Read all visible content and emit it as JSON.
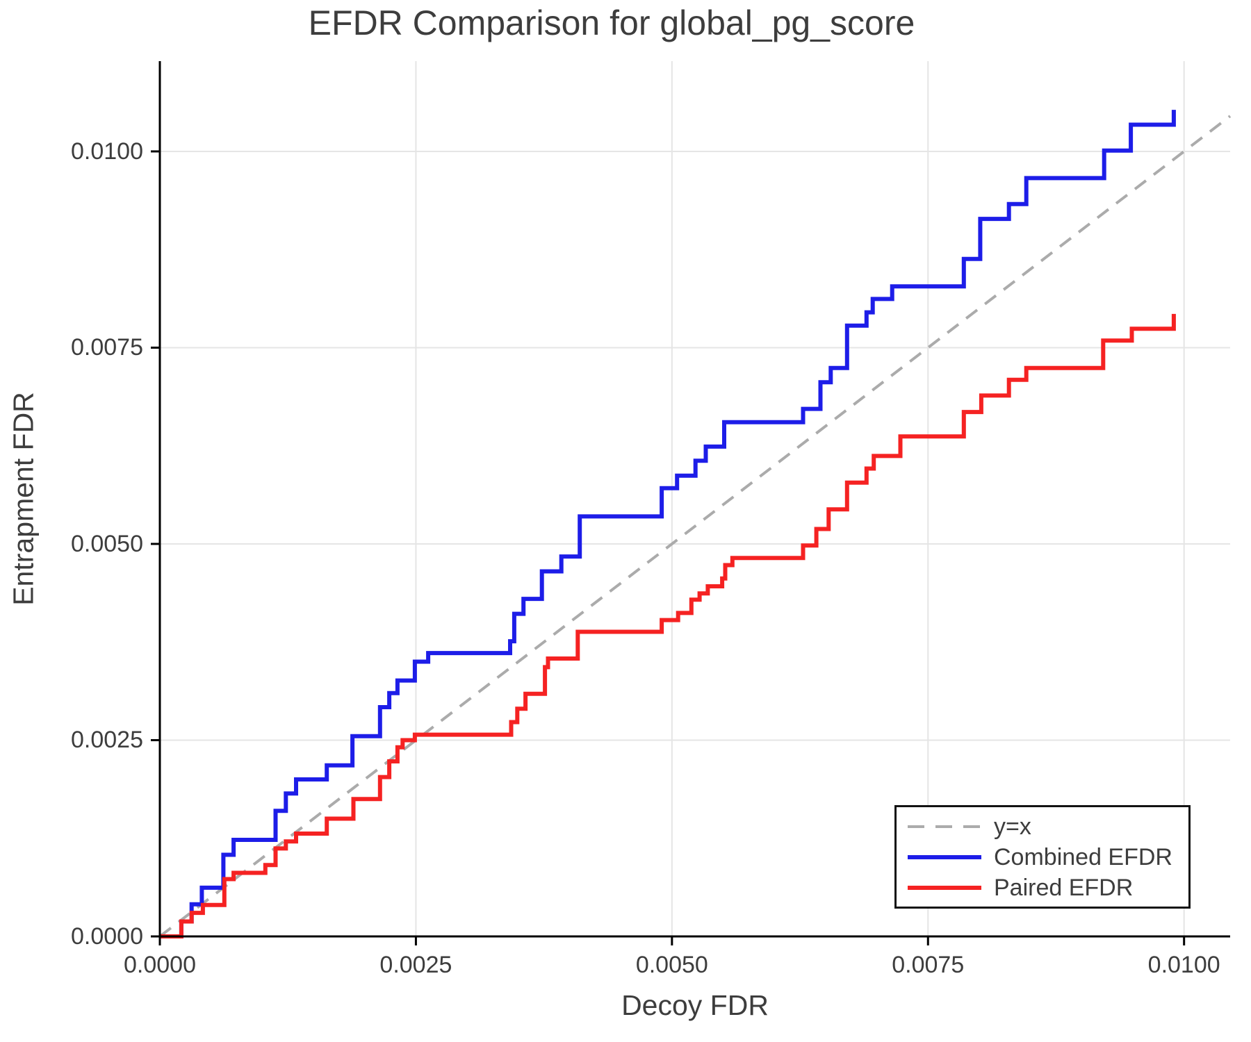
{
  "chart_data": {
    "type": "line",
    "subtype": "step",
    "title": "EFDR Comparison for global_pg_score",
    "xlabel": "Decoy FDR",
    "ylabel": "Entrapment FDR",
    "xlim": [
      0,
      0.01045
    ],
    "ylim": [
      0,
      0.01115
    ],
    "grid": true,
    "x_ticks": [
      0.0,
      0.0025,
      0.005,
      0.0075,
      0.01
    ],
    "x_tick_labels": [
      "0.0000",
      "0.0025",
      "0.0050",
      "0.0075",
      "0.0100"
    ],
    "y_ticks": [
      0.0,
      0.0025,
      0.005,
      0.0075,
      0.01
    ],
    "y_tick_labels": [
      "0.0000",
      "0.0025",
      "0.0050",
      "0.0075",
      "0.0100"
    ],
    "colors": {
      "grid": "#e5e5e5",
      "axis": "#000000",
      "text": "#3d3d3d",
      "background": "#ffffff"
    },
    "diagonal": {
      "label": "y=x",
      "color": "#ababab",
      "dash": [
        20,
        14
      ],
      "width": 4,
      "from": [
        0,
        0
      ],
      "to": [
        0.01045,
        0.01045
      ]
    },
    "series": [
      {
        "name": "Combined EFDR",
        "color": "#1d1de8",
        "width": 6,
        "start": [
          0,
          0
        ],
        "steps": [
          [
            0.00021,
            0.00019
          ],
          [
            0.00031,
            0.00041
          ],
          [
            0.00041,
            0.00062
          ],
          [
            0.00062,
            0.00104
          ],
          [
            0.00072,
            0.00123
          ],
          [
            0.00113,
            0.0016
          ],
          [
            0.00123,
            0.00182
          ],
          [
            0.00133,
            0.002
          ],
          [
            0.00163,
            0.00218
          ],
          [
            0.00188,
            0.00255
          ],
          [
            0.00215,
            0.00292
          ],
          [
            0.00224,
            0.0031
          ],
          [
            0.00232,
            0.00326
          ],
          [
            0.00249,
            0.0035
          ],
          [
            0.00262,
            0.00361
          ],
          [
            0.00342,
            0.00376
          ],
          [
            0.00346,
            0.00411
          ],
          [
            0.00355,
            0.0043
          ],
          [
            0.00373,
            0.00465
          ],
          [
            0.00392,
            0.00484
          ],
          [
            0.0041,
            0.00535
          ],
          [
            0.0049,
            0.00571
          ],
          [
            0.00505,
            0.00587
          ],
          [
            0.00523,
            0.00606
          ],
          [
            0.00533,
            0.00624
          ],
          [
            0.00551,
            0.00655
          ],
          [
            0.00628,
            0.00672
          ],
          [
            0.00645,
            0.00706
          ],
          [
            0.00655,
            0.00724
          ],
          [
            0.00671,
            0.00778
          ],
          [
            0.0069,
            0.00795
          ],
          [
            0.00696,
            0.00812
          ],
          [
            0.00715,
            0.00828
          ],
          [
            0.00785,
            0.00863
          ],
          [
            0.00801,
            0.00914
          ],
          [
            0.00829,
            0.00933
          ],
          [
            0.00846,
            0.00966
          ],
          [
            0.00922,
            0.01001
          ],
          [
            0.00948,
            0.01034
          ],
          [
            0.0099,
            0.01053
          ]
        ]
      },
      {
        "name": "Paired EFDR",
        "color": "#f52222",
        "width": 6,
        "start": [
          0,
          0
        ],
        "steps": [
          [
            0.00021,
            0.00019
          ],
          [
            0.00031,
            0.0003
          ],
          [
            0.00042,
            0.0004
          ],
          [
            0.00063,
            0.00073
          ],
          [
            0.00072,
            0.00081
          ],
          [
            0.00103,
            0.00091
          ],
          [
            0.00113,
            0.00112
          ],
          [
            0.00123,
            0.00121
          ],
          [
            0.00133,
            0.00131
          ],
          [
            0.00163,
            0.0015
          ],
          [
            0.00189,
            0.00175
          ],
          [
            0.00215,
            0.00203
          ],
          [
            0.00224,
            0.00223
          ],
          [
            0.00232,
            0.00241
          ],
          [
            0.00237,
            0.0025
          ],
          [
            0.00249,
            0.00257
          ],
          [
            0.00343,
            0.00273
          ],
          [
            0.00349,
            0.0029
          ],
          [
            0.00357,
            0.00309
          ],
          [
            0.00376,
            0.00343
          ],
          [
            0.00379,
            0.00354
          ],
          [
            0.00408,
            0.00388
          ],
          [
            0.0049,
            0.00403
          ],
          [
            0.00506,
            0.00412
          ],
          [
            0.00519,
            0.00429
          ],
          [
            0.00527,
            0.00437
          ],
          [
            0.00535,
            0.00446
          ],
          [
            0.00549,
            0.00456
          ],
          [
            0.00552,
            0.00473
          ],
          [
            0.00559,
            0.00482
          ],
          [
            0.00628,
            0.00498
          ],
          [
            0.00641,
            0.00519
          ],
          [
            0.00653,
            0.00544
          ],
          [
            0.00671,
            0.00578
          ],
          [
            0.0069,
            0.00596
          ],
          [
            0.00697,
            0.00612
          ],
          [
            0.00723,
            0.00637
          ],
          [
            0.00785,
            0.00668
          ],
          [
            0.00802,
            0.00689
          ],
          [
            0.00829,
            0.00709
          ],
          [
            0.00846,
            0.00724
          ],
          [
            0.00921,
            0.00759
          ],
          [
            0.00949,
            0.00774
          ],
          [
            0.0099,
            0.00793
          ]
        ]
      }
    ],
    "legend": {
      "position": "bottom-right",
      "items": [
        {
          "label": "y=x",
          "style": "dashed-gray"
        },
        {
          "label": "Combined EFDR",
          "style": "solid-blue"
        },
        {
          "label": "Paired EFDR",
          "style": "solid-red"
        }
      ]
    }
  }
}
